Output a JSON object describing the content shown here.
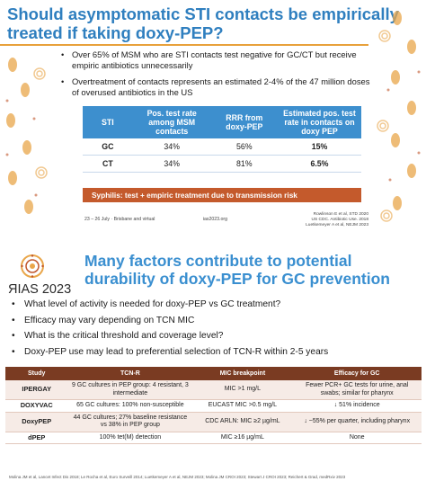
{
  "slide1": {
    "title": "Should asymptomatic STI contacts be empirically treated if taking doxy-PEP?",
    "bullets": [
      "Over 65% of MSM who are STI contacts test negative for GC/CT but receive empiric antibiotics unnecessarily",
      "Overtreatment of contacts represents an estimated 2-4% of the 47 million doses of overused antibiotics in the US"
    ],
    "table": {
      "headers": [
        "STI",
        "Pos. test rate among MSM contacts",
        "RRR from doxy-PEP",
        "Estimated pos. test rate in contacts on doxy PEP"
      ],
      "rows": [
        [
          "GC",
          "34%",
          "56%",
          "15%"
        ],
        [
          "CT",
          "34%",
          "81%",
          "6.5%"
        ]
      ]
    },
    "banner": "Syphilis: test + empiric treatment due to transmission risk",
    "footer_date": "23 – 26 July · Brisbane and virtual",
    "footer_site": "ias2023.org",
    "citations": [
      "Rowlinson E et al, STD 2020",
      "US CDC. Antibiotic Use. 2018",
      "Luetkemeyer A et al, NEJM 2023"
    ],
    "colors": {
      "title": "#2f7fbf",
      "table_header": "#3d8fce",
      "banner": "#c45a2c",
      "rule": "#e8a13b"
    }
  },
  "slide2": {
    "logo_text": "ЯIAS 2023",
    "title": "Many factors contribute to potential durability of doxy-PEP for GC prevention",
    "bullets": [
      "What level of activity is needed for doxy-PEP vs GC treatment?",
      "Efficacy may vary depending on TCN MIC",
      "What is the critical threshold and coverage level?",
      "Doxy-PEP use may lead to preferential selection of TCN-R within 2-5 years"
    ],
    "table": {
      "headers": [
        "Study",
        "TCN-R",
        "MIC breakpoint",
        "Efficacy for GC"
      ],
      "rows": [
        [
          "IPERGAY",
          "9 GC cultures in PEP group: 4 resistant, 3 intermediate",
          "MIC >1 mg/L",
          "Fewer PCR+ GC tests for urine, anal swabs; similar for pharynx"
        ],
        [
          "DOXYVAC",
          "65 GC cultures: 100% non-susceptible",
          "EUCAST MIC >0.5 mg/L",
          "↓ 51% incidence"
        ],
        [
          "DoxyPEP",
          "44 GC cultures; 27% baseline resistance vs 38% in PEP group",
          "CDC ARLN: MIC ≥2 µg/mL",
          "↓ ~55% per quarter, including pharynx"
        ],
        [
          "dPEP",
          "100% tet(M) detection",
          "MIC ≥16 µg/mL",
          "None"
        ]
      ]
    },
    "footer": "Molina JM et al, Lancet Infect Dis 2018; Le Rocha et al, Euro Surveill 2014; Luetkemeyer A et al, NEJM 2023; Molina JM CROI 2023; Stewart J CROI 2023; Reichert & Grad, medRxiv 2023",
    "colors": {
      "title": "#3a8fd0",
      "table_header": "#7a3b22",
      "row_alt": "#f6ebe6"
    }
  }
}
